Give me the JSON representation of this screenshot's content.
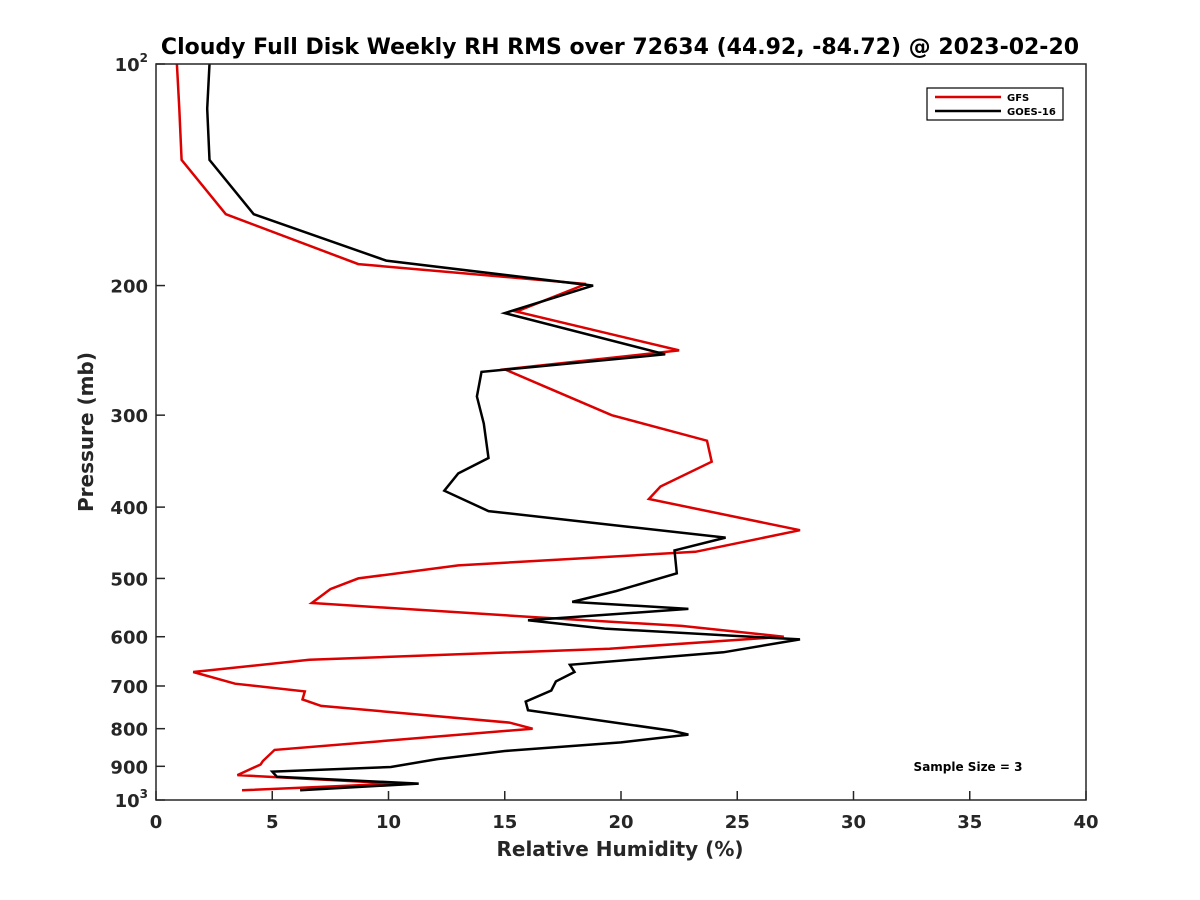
{
  "chart_data": {
    "type": "line",
    "title": "Cloudy Full Disk Weekly RH RMS over 72634 (44.92, -84.72) @ 2023-02-20",
    "xlabel": "Relative Humidity (%)",
    "ylabel": "Pressure (mb)",
    "xlim": [
      0,
      40
    ],
    "ylim": [
      100,
      1000
    ],
    "y_scale": "log",
    "y_reversed": true,
    "x_ticks": [
      "0",
      "5",
      "10",
      "15",
      "20",
      "25",
      "30",
      "35",
      "40"
    ],
    "y_ticks": [
      {
        "value": 100,
        "base": "10",
        "exp": "2"
      },
      {
        "value": 200,
        "label": "200"
      },
      {
        "value": 300,
        "label": "300"
      },
      {
        "value": 400,
        "label": "400"
      },
      {
        "value": 500,
        "label": "500"
      },
      {
        "value": 600,
        "label": "600"
      },
      {
        "value": 700,
        "label": "700"
      },
      {
        "value": 800,
        "label": "800"
      },
      {
        "value": 900,
        "label": "900"
      },
      {
        "value": 1000,
        "base": "10",
        "exp": "3"
      }
    ],
    "legend_position": "top-right",
    "annotation": "Sample Size = 3",
    "series": [
      {
        "name": "GFS",
        "color": "#dd0000",
        "points": [
          [
            0.9,
            100
          ],
          [
            1.0,
            115
          ],
          [
            1.1,
            135
          ],
          [
            3.0,
            160
          ],
          [
            8.7,
            187
          ],
          [
            18.5,
            199
          ],
          [
            15.5,
            217
          ],
          [
            22.5,
            245
          ],
          [
            15.0,
            260
          ],
          [
            16.8,
            275
          ],
          [
            19.6,
            300
          ],
          [
            23.7,
            325
          ],
          [
            23.9,
            347
          ],
          [
            21.7,
            375
          ],
          [
            21.2,
            390
          ],
          [
            27.7,
            430
          ],
          [
            23.2,
            460
          ],
          [
            13.0,
            480
          ],
          [
            8.7,
            500
          ],
          [
            7.5,
            517
          ],
          [
            6.7,
            540
          ],
          [
            16.5,
            565
          ],
          [
            22.6,
            580
          ],
          [
            27.0,
            600
          ],
          [
            19.5,
            623
          ],
          [
            6.6,
            645
          ],
          [
            1.6,
            670
          ],
          [
            3.4,
            695
          ],
          [
            6.4,
            712
          ],
          [
            6.3,
            730
          ],
          [
            7.1,
            745
          ],
          [
            15.2,
            785
          ],
          [
            16.2,
            800
          ],
          [
            5.1,
            855
          ],
          [
            4.6,
            885
          ],
          [
            4.5,
            895
          ],
          [
            3.5,
            925
          ],
          [
            10.4,
            950
          ],
          [
            3.7,
            970
          ]
        ]
      },
      {
        "name": "GOES-16",
        "color": "#000000",
        "points": [
          [
            2.3,
            100
          ],
          [
            2.2,
            115
          ],
          [
            2.3,
            135
          ],
          [
            4.2,
            160
          ],
          [
            9.9,
            185
          ],
          [
            18.8,
            200
          ],
          [
            15.0,
            218
          ],
          [
            21.9,
            248
          ],
          [
            14.0,
            262
          ],
          [
            13.8,
            283
          ],
          [
            14.1,
            308
          ],
          [
            14.3,
            343
          ],
          [
            13.0,
            360
          ],
          [
            12.4,
            380
          ],
          [
            14.3,
            405
          ],
          [
            20.2,
            425
          ],
          [
            24.5,
            440
          ],
          [
            22.3,
            458
          ],
          [
            22.4,
            492
          ],
          [
            19.8,
            520
          ],
          [
            17.9,
            538
          ],
          [
            22.9,
            550
          ],
          [
            16.0,
            570
          ],
          [
            19.3,
            585
          ],
          [
            24.8,
            598
          ],
          [
            27.7,
            605
          ],
          [
            24.4,
            630
          ],
          [
            17.8,
            655
          ],
          [
            18.0,
            670
          ],
          [
            17.2,
            690
          ],
          [
            17.0,
            710
          ],
          [
            15.9,
            735
          ],
          [
            16.0,
            755
          ],
          [
            18.5,
            775
          ],
          [
            22.2,
            805
          ],
          [
            22.9,
            815
          ],
          [
            20.0,
            835
          ],
          [
            15.0,
            858
          ],
          [
            12.1,
            880
          ],
          [
            10.1,
            902
          ],
          [
            5.0,
            915
          ],
          [
            5.2,
            930
          ],
          [
            11.3,
            950
          ],
          [
            6.2,
            970
          ]
        ]
      }
    ]
  }
}
